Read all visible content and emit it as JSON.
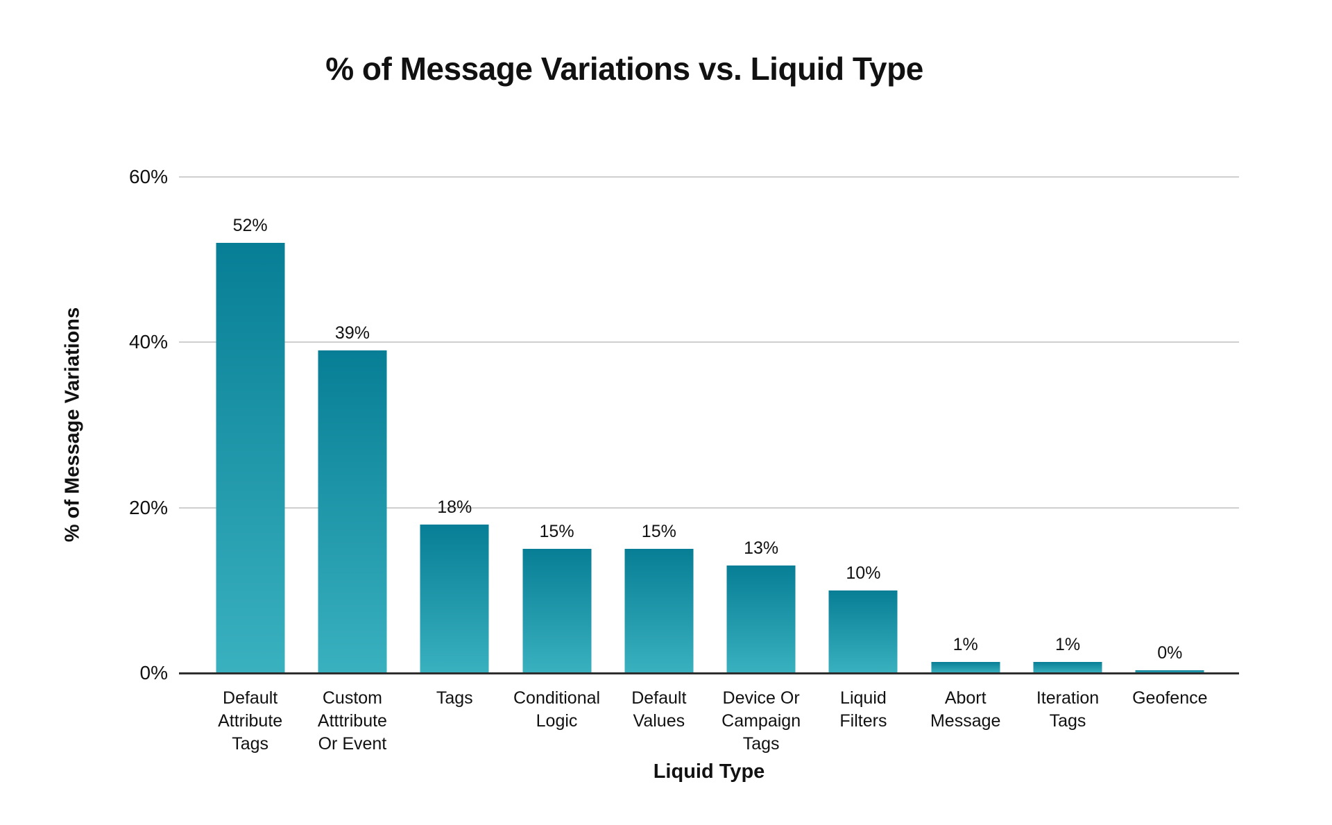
{
  "chart_data": {
    "type": "bar",
    "title": "% of Message Variations vs. Liquid Type",
    "xlabel": "Liquid Type",
    "ylabel": "% of Message Variations",
    "categories": [
      "Default\nAttribute\nTags",
      "Custom\nAtttribute\nOr Event",
      "Tags",
      "Conditional\nLogic",
      "Default\nValues",
      "Device Or\nCampaign\nTags",
      "Liquid\nFilters",
      "Abort\nMessage",
      "Iteration\nTags",
      "Geofence"
    ],
    "values": [
      52,
      39,
      18,
      15,
      15,
      13,
      10,
      1,
      1,
      0
    ],
    "value_labels": [
      "52%",
      "39%",
      "18%",
      "15%",
      "15%",
      "13%",
      "10%",
      "1%",
      "1%",
      "0%"
    ],
    "ylim": [
      0,
      60
    ],
    "yticks": [
      {
        "value": 60,
        "label": "60%"
      },
      {
        "value": 40,
        "label": "40%"
      },
      {
        "value": 20,
        "label": "20%"
      },
      {
        "value": 0,
        "label": "0%"
      }
    ],
    "grid": "horizontal",
    "legend": "none",
    "colors": {
      "bar_gradient_top": "#077e95",
      "bar_gradient_bottom": "#3ab1bf",
      "gridline": "#cfcfcf",
      "axis_line": "#2e2e2e",
      "text": "#111111",
      "background": "#ffffff"
    }
  }
}
